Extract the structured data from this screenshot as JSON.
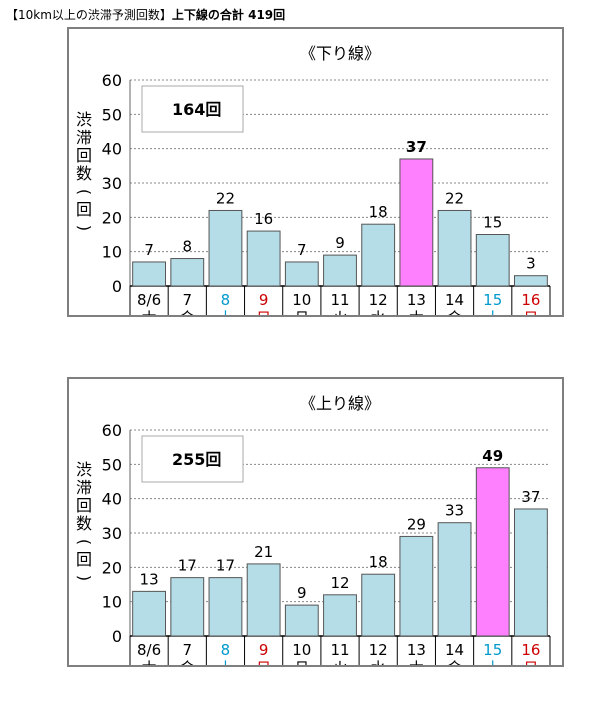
{
  "header": {
    "title": "【10km以上の渋滞予測回数】",
    "total_label": "上下線の合計 419回"
  },
  "colors": {
    "bar": "#b4dde8",
    "bar_highlight": "#ff80ff",
    "saturday": "#0099cc",
    "sunday": "#cc0000",
    "weekday": "#000000"
  },
  "chart_data": [
    {
      "type": "bar",
      "title": "《下り線》",
      "total_box": "164回",
      "ylabel": "渋滞回数(回)",
      "ylim": [
        0,
        60
      ],
      "yticks": [
        0,
        10,
        20,
        30,
        40,
        50,
        60
      ],
      "grid": true,
      "categories": [
        "8/6",
        "7",
        "8",
        "9",
        "10",
        "11",
        "12",
        "13",
        "14",
        "15",
        "16"
      ],
      "weekdays": [
        "木",
        "金",
        "土",
        "日",
        "月",
        "火",
        "水",
        "木",
        "金",
        "土",
        "日"
      ],
      "day_types": [
        "weekday",
        "weekday",
        "saturday",
        "sunday",
        "weekday",
        "weekday",
        "weekday",
        "weekday",
        "weekday",
        "saturday",
        "sunday"
      ],
      "values": [
        7,
        8,
        22,
        16,
        7,
        9,
        18,
        37,
        22,
        15,
        3
      ],
      "highlight_index": 7
    },
    {
      "type": "bar",
      "title": "《上り線》",
      "total_box": "255回",
      "ylabel": "渋滞回数(回)",
      "ylim": [
        0,
        60
      ],
      "yticks": [
        0,
        10,
        20,
        30,
        40,
        50,
        60
      ],
      "grid": true,
      "categories": [
        "8/6",
        "7",
        "8",
        "9",
        "10",
        "11",
        "12",
        "13",
        "14",
        "15",
        "16"
      ],
      "weekdays": [
        "木",
        "金",
        "土",
        "日",
        "月",
        "火",
        "水",
        "木",
        "金",
        "土",
        "日"
      ],
      "day_types": [
        "weekday",
        "weekday",
        "saturday",
        "sunday",
        "weekday",
        "weekday",
        "weekday",
        "weekday",
        "weekday",
        "saturday",
        "sunday"
      ],
      "values": [
        13,
        17,
        17,
        21,
        9,
        12,
        18,
        29,
        33,
        49,
        37
      ],
      "highlight_index": 9
    }
  ]
}
